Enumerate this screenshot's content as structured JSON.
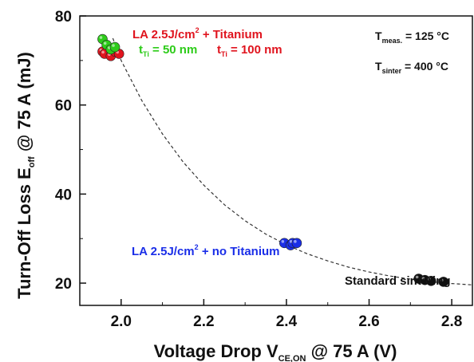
{
  "chart_data": {
    "type": "scatter",
    "xlabel": "Voltage Drop V",
    "xlabel_subscript": "CE,ON",
    "xlabel_suffix": " @ 75 A (V)",
    "ylabel": "Turn-Off Loss E",
    "ylabel_subscript": "off",
    "ylabel_suffix": " @ 75 A   (mJ)",
    "xlim": [
      1.9,
      2.85
    ],
    "ylim": [
      15,
      80
    ],
    "xticks": [
      "2.0",
      "2.2",
      "2.4",
      "2.6",
      "2.8"
    ],
    "yticks": [
      "20",
      "40",
      "60",
      "80"
    ],
    "grid": false,
    "series": [
      {
        "color": "#e0141e",
        "x": [
          1.955,
          1.96,
          1.975,
          1.985,
          1.995
        ],
        "y": [
          72.0,
          71.5,
          71.0,
          72.0,
          71.5
        ]
      },
      {
        "color": "#2ecc1a",
        "x": [
          1.955,
          1.965,
          1.975,
          1.985
        ],
        "y": [
          74.8,
          73.5,
          72.5,
          73.0
        ]
      },
      {
        "color": "#1a2ee8",
        "x": [
          2.395,
          2.41,
          2.415,
          2.425
        ],
        "y": [
          29.0,
          28.5,
          29.0,
          29.0
        ]
      },
      {
        "color": "#111111",
        "x": [
          2.72,
          2.735,
          2.75,
          2.78
        ],
        "y": [
          21.0,
          20.7,
          20.5,
          20.3
        ]
      }
    ],
    "trend_curve": {
      "style": "dashed",
      "x": [
        1.98,
        2.0,
        2.05,
        2.1,
        2.15,
        2.2,
        2.25,
        2.3,
        2.35,
        2.4,
        2.45,
        2.5,
        2.55,
        2.6,
        2.65,
        2.7,
        2.75,
        2.8,
        2.85
      ],
      "y": [
        75.0,
        70.0,
        61.0,
        53.5,
        47.2,
        42.0,
        37.6,
        34.0,
        31.0,
        28.6,
        26.6,
        25.0,
        23.6,
        22.5,
        21.6,
        20.9,
        20.3,
        19.9,
        19.6
      ]
    },
    "annotations": {
      "la_ti": {
        "text": "LA 2.5J/cm",
        "sup": "2",
        "suffix": " + Titanium",
        "color": "#e0141e"
      },
      "t50": {
        "prefix": "t",
        "sub": "Ti",
        "suffix": " = 50 nm",
        "color": "#2ecc1a"
      },
      "t100": {
        "prefix": "t",
        "sub": "Ti",
        "suffix": " = 100 nm",
        "color": "#e0141e"
      },
      "la_noti": {
        "text": "LA 2.5J/cm",
        "sup": "2",
        "suffix": " + no Titanium",
        "color": "#1a2ee8"
      },
      "std": {
        "text": "Standard sintering",
        "color": "#111111"
      },
      "tmeas": {
        "prefix": "T",
        "sub": "meas.",
        "suffix": " = 125 °C"
      },
      "tsint": {
        "prefix": "T",
        "sub": "sinter",
        "suffix": " = 400 °C"
      }
    }
  }
}
